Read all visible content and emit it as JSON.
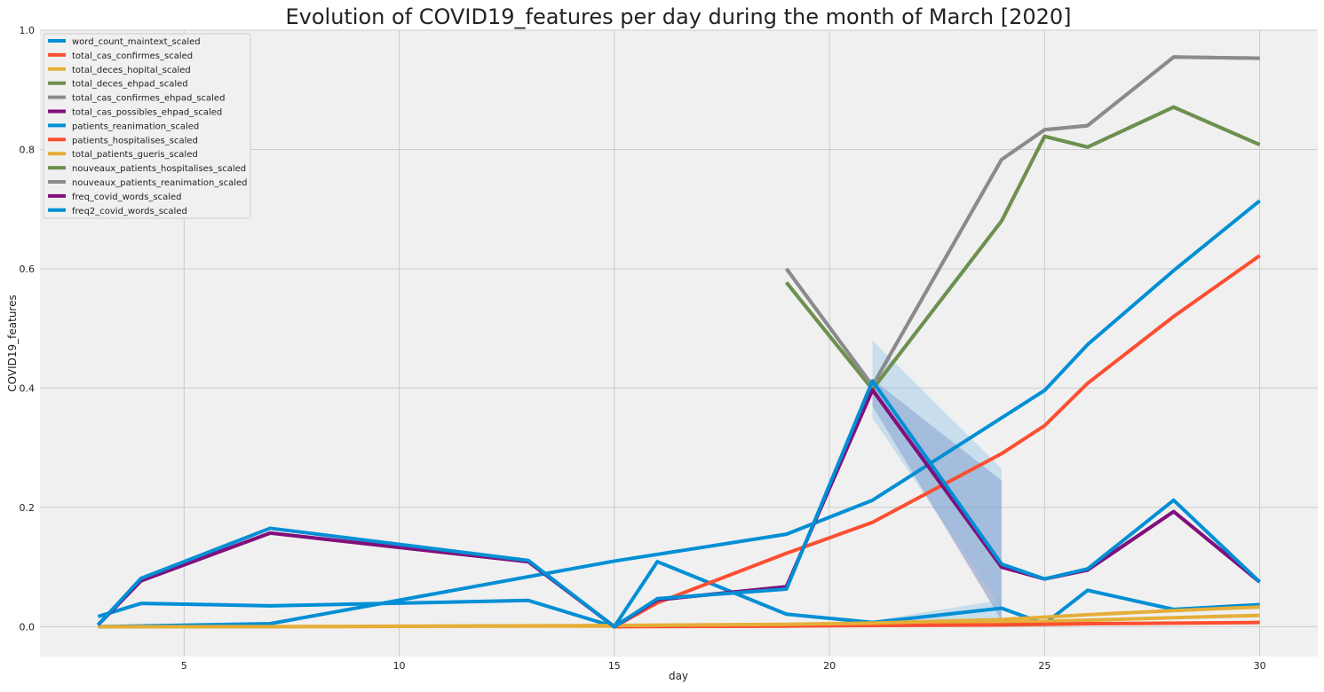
{
  "chart_data": {
    "type": "line",
    "title": "Evolution of COVID19_features per day during the month of March [2020]",
    "xlabel": "day",
    "ylabel": "COVID19_features",
    "xlim": [
      1.65,
      31.35
    ],
    "ylim": [
      -0.05,
      1.0
    ],
    "xticks": [
      5,
      10,
      15,
      20,
      25,
      30
    ],
    "yticks": [
      0.0,
      0.2,
      0.4,
      0.6,
      0.8,
      1.0
    ],
    "xtick_labels": [
      "5",
      "10",
      "15",
      "20",
      "25",
      "30"
    ],
    "ytick_labels": [
      "0.0",
      "0.2",
      "0.4",
      "0.6",
      "0.8",
      "1.0"
    ],
    "grid": true,
    "legend_position": "top-left",
    "background": "#f0f0f0",
    "series": [
      {
        "name": "word_count_maintext_scaled",
        "color": "#008fd5",
        "x": [
          3,
          4,
          7,
          13,
          15,
          16,
          19,
          21,
          24,
          25,
          26,
          28,
          30
        ],
        "y": [
          0.017,
          0.039,
          0.035,
          0.044,
          0.0,
          0.109,
          0.021,
          0.007,
          0.031,
          0.005,
          0.061,
          0.029,
          0.037
        ]
      },
      {
        "name": "total_cas_confirmes_scaled",
        "color": "#fc4f30",
        "x": [
          15,
          16,
          19,
          21,
          24,
          25,
          26,
          28,
          30
        ],
        "y": [
          0.0,
          0.04,
          0.123,
          0.175,
          0.29,
          0.337,
          0.408,
          0.52,
          0.622
        ]
      },
      {
        "name": "total_deces_hopital_scaled",
        "color": "#e5ae38",
        "x": [
          3,
          7,
          13,
          15,
          19,
          21,
          24,
          25,
          26,
          28,
          30
        ],
        "y": [
          0.0,
          0.0,
          0.001,
          0.001,
          0.003,
          0.004,
          0.007,
          0.009,
          0.011,
          0.015,
          0.019
        ]
      },
      {
        "name": "total_deces_ehpad_scaled",
        "color": "#6d904f",
        "x": [
          19,
          21,
          24,
          25,
          26,
          28,
          30
        ],
        "y": [
          0.577,
          0.398,
          0.68,
          0.822,
          0.804,
          0.871,
          0.808
        ]
      },
      {
        "name": "total_cas_confirmes_ehpad_scaled",
        "color": "#8b8b8b",
        "x": [
          19,
          21,
          24,
          25,
          26,
          28,
          30
        ],
        "y": [
          0.6,
          0.404,
          0.783,
          0.833,
          0.84,
          0.955,
          0.953
        ]
      },
      {
        "name": "total_cas_possibles_ehpad_scaled",
        "color": "#810f7c",
        "x": [
          3,
          4,
          7,
          13,
          15,
          16,
          19,
          21,
          24,
          25,
          26,
          28,
          30
        ],
        "y": [
          0.003,
          0.077,
          0.157,
          0.109,
          0.0,
          0.045,
          0.067,
          0.397,
          0.1,
          0.08,
          0.095,
          0.193,
          0.075
        ]
      },
      {
        "name": "patients_reanimation_scaled",
        "color": "#008fd5",
        "x": [
          3,
          7,
          15,
          19,
          21,
          24,
          25,
          26,
          28,
          30
        ],
        "y": [
          0.0,
          0.005,
          0.11,
          0.155,
          0.212,
          0.35,
          0.396,
          0.473,
          0.597,
          0.714
        ]
      },
      {
        "name": "patients_hospitalises_scaled",
        "color": "#fc4f30",
        "x": [
          15,
          19,
          21,
          24,
          25,
          26,
          28,
          30
        ],
        "y": [
          0.0,
          0.001,
          0.002,
          0.003,
          0.004,
          0.005,
          0.006,
          0.007
        ]
      },
      {
        "name": "total_patients_gueris_scaled",
        "color": "#e5ae38",
        "x": [
          3,
          7,
          15,
          19,
          21,
          24,
          25,
          26,
          28,
          30
        ],
        "y": [
          0.0,
          0.0,
          0.002,
          0.004,
          0.006,
          0.012,
          0.016,
          0.02,
          0.027,
          0.033
        ]
      },
      {
        "name": "nouveaux_patients_hospitalises_scaled",
        "color": "#6d904f",
        "x": [
          19,
          21,
          24,
          25,
          26,
          28,
          30
        ],
        "y": [
          0.577,
          0.398,
          0.68,
          0.822,
          0.804,
          0.871,
          0.808
        ]
      },
      {
        "name": "nouveaux_patients_reanimation_scaled",
        "color": "#8b8b8b",
        "x": [
          19,
          21,
          24,
          25,
          26,
          28,
          30
        ],
        "y": [
          0.6,
          0.404,
          0.783,
          0.833,
          0.84,
          0.955,
          0.953
        ]
      },
      {
        "name": "freq_covid_words_scaled",
        "color": "#810f7c",
        "x": [
          3,
          4,
          7,
          13,
          15,
          16,
          19,
          21,
          24,
          25,
          26,
          28,
          30
        ],
        "y": [
          0.003,
          0.077,
          0.157,
          0.109,
          0.0,
          0.045,
          0.067,
          0.397,
          0.1,
          0.08,
          0.095,
          0.193,
          0.075
        ]
      },
      {
        "name": "freq2_covid_words_scaled",
        "color": "#008fd5",
        "x": [
          3,
          4,
          7,
          13,
          15,
          16,
          19,
          21,
          24,
          25,
          26,
          28,
          30
        ],
        "y": [
          0.003,
          0.081,
          0.165,
          0.111,
          0.0,
          0.047,
          0.063,
          0.412,
          0.105,
          0.08,
          0.097,
          0.212,
          0.075
        ]
      }
    ],
    "bands": [
      {
        "series": "freq_covid_words_scaled",
        "color": "#4f5fa8",
        "opacity": 0.35,
        "x": [
          21,
          24
        ],
        "lower": [
          0.37,
          0.01
        ],
        "upper": [
          0.415,
          0.245
        ]
      },
      {
        "series": "freq2_covid_words_scaled",
        "color": "#7fbce6",
        "opacity": 0.35,
        "x": [
          21,
          24
        ],
        "lower": [
          0.35,
          0.03
        ],
        "upper": [
          0.48,
          0.265
        ]
      },
      {
        "series": "word_count_maintext_scaled",
        "color": "#7fbce6",
        "opacity": 0.35,
        "x": [
          21,
          24
        ],
        "lower": [
          0.004,
          0.01
        ],
        "upper": [
          0.01,
          0.045
        ]
      }
    ]
  }
}
